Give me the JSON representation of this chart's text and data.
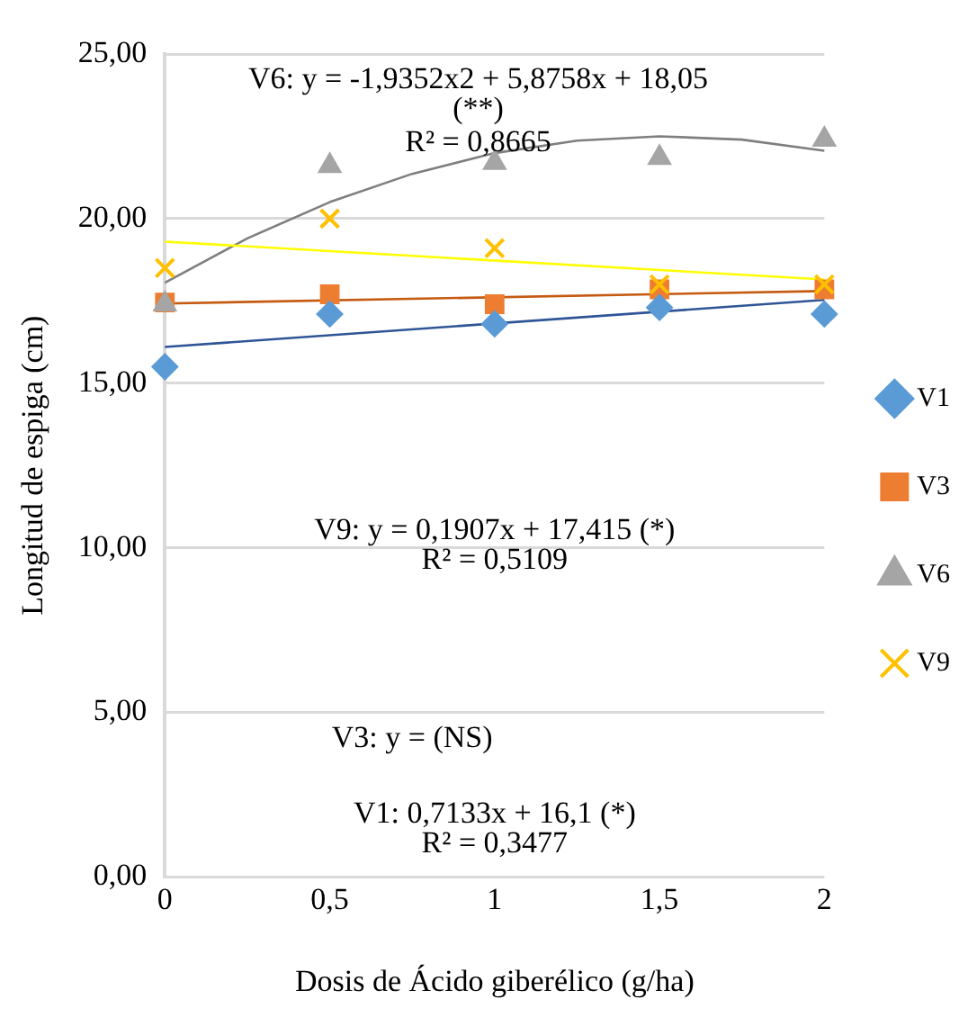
{
  "chart_data": {
    "type": "scatter",
    "xlabel": "Dosis de Ácido giberélico (g/ha)",
    "ylabel": "Longitud de espiga (cm)",
    "x": [
      0,
      0.5,
      1,
      1.5,
      2
    ],
    "series": [
      {
        "name": "V1",
        "color": "#5b9bd5",
        "marker": "diamond",
        "values": [
          15.5,
          17.1,
          16.8,
          17.3,
          17.1
        ]
      },
      {
        "name": "V3",
        "color": "#ed7d31",
        "marker": "square",
        "values": [
          17.45,
          17.7,
          17.4,
          17.85,
          17.85
        ]
      },
      {
        "name": "V6",
        "color": "#a5a5a5",
        "marker": "triangle",
        "values": [
          17.4,
          21.6,
          21.7,
          21.85,
          22.4
        ]
      },
      {
        "name": "V9",
        "color": "#ffc000",
        "marker": "cross",
        "values": [
          18.5,
          20.0,
          19.1,
          18.0,
          18.0
        ]
      },
      {
        "type": "line",
        "color": "#2f5597",
        "marker": "none",
        "x": [
          0,
          2
        ],
        "values": [
          16.1,
          17.53
        ]
      },
      {
        "type": "line",
        "color": "#c55a11",
        "marker": "none",
        "x": [
          0,
          2
        ],
        "values": [
          17.42,
          17.8
        ]
      },
      {
        "type": "line",
        "color": "#ffff00",
        "marker": "none",
        "x": [
          0,
          2
        ],
        "values": [
          19.3,
          18.15
        ]
      },
      {
        "type": "line",
        "color": "#7f7f7f",
        "marker": "none",
        "x": [
          0,
          0.25,
          0.5,
          0.75,
          1,
          1.25,
          1.5,
          1.75,
          2
        ],
        "values": [
          18.05,
          19.4,
          20.5,
          21.36,
          21.99,
          22.37,
          22.5,
          22.4,
          22.06
        ]
      }
    ],
    "xlim": [
      0,
      2
    ],
    "xticks": [
      {
        "value": 0,
        "label": "0"
      },
      {
        "value": 0.5,
        "label": "0,5"
      },
      {
        "value": 1,
        "label": "1"
      },
      {
        "value": 1.5,
        "label": "1,5"
      },
      {
        "value": 2,
        "label": "2"
      }
    ],
    "ylim": [
      0,
      25
    ],
    "yticks": [
      {
        "value": 0,
        "label": "0,00"
      },
      {
        "value": 5,
        "label": "5,00"
      },
      {
        "value": 10,
        "label": "10,00"
      },
      {
        "value": 15,
        "label": "15,00"
      },
      {
        "value": 20,
        "label": "20,00"
      },
      {
        "value": 25,
        "label": "25,00"
      }
    ],
    "grid": "y",
    "legend": "right",
    "annotations": [
      "V6: y = -1,9352x2 + 5,8758x + 18,05\n(**)\nR² = 0,8665",
      "V9: y = 0,1907x + 17,415 (*)\nR² = 0,5109",
      "V3: y = (NS)",
      "V1: 0,7133x + 16,1 (*)\nR² = 0,3477"
    ]
  }
}
